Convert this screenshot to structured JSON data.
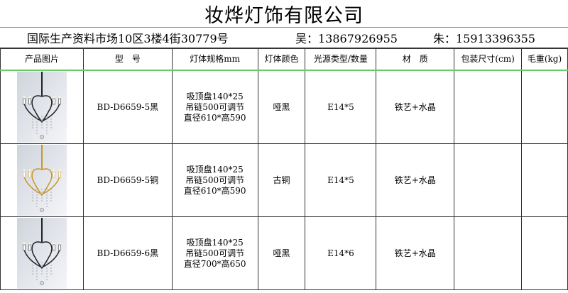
{
  "title": "妆烨灯饰有限公司",
  "address": "国际生产资料市场10区3楼4街30779号",
  "contact1": "吴：13867926955",
  "contact2": "朱：15913396355",
  "headers": [
    "产品图片",
    "型　号",
    "灯体规格mm",
    "灯体颜色",
    "光源类型/数量",
    "材　质",
    "包装尺寸(cm)",
    "毛重(kg)"
  ],
  "rows": [
    {
      "image": "black-chandelier-5",
      "model": "BD-D6659-5黑",
      "spec": [
        "吸顶盘140*25",
        "吊链500可调节",
        "直径610*高590"
      ],
      "color": "哑黑",
      "light": "E14*5",
      "material": "铁艺+水晶",
      "package": "",
      "weight": "",
      "frame_color": "#222222"
    },
    {
      "image": "gold-chandelier-5",
      "model": "BD-D6659-5铜",
      "spec": [
        "吸顶盘140*25",
        "吊链500可调节",
        "直径610*高590"
      ],
      "color": "古铜",
      "light": "E14*5",
      "material": "铁艺+水晶",
      "package": "",
      "weight": "",
      "frame_color": "#c8962a"
    },
    {
      "image": "black-chandelier-6",
      "model": "BD-D6659-6黑",
      "spec": [
        "吸顶盘140*25",
        "吊链500可调节",
        "直径700*高650"
      ],
      "color": "哑黑",
      "light": "E14*6",
      "material": "铁艺+水晶",
      "package": "",
      "weight": "",
      "frame_color": "#222222"
    }
  ]
}
